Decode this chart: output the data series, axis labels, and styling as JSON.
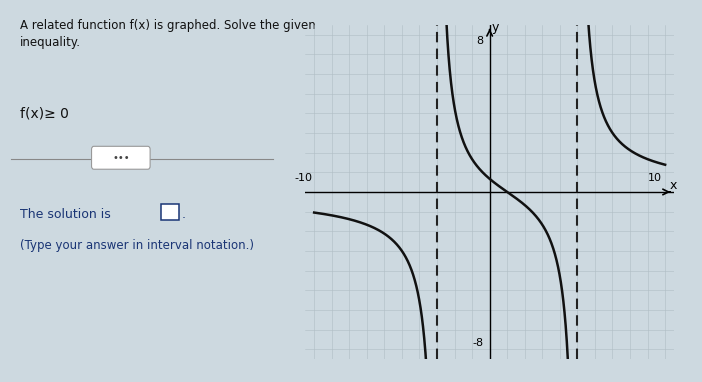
{
  "title_text": "A related function f(x) is graphed. Solve the given\ninequality.",
  "inequality_text": "f(x)≥ 0",
  "solution_label": "The solution is",
  "solution_note": "(Type your answer in interval notation.)",
  "left_bg": "#cdd9e0",
  "graph_outer_bg": "#d0dde5",
  "graph_inner_bg": "#dce8f0",
  "grid_color": "#b0bec5",
  "axis_color": "#000000",
  "curve_color": "#111111",
  "asymptote_color": "#222222",
  "va1": -3,
  "va2": 5,
  "xmin": -10,
  "xmax": 10,
  "ymin": -8,
  "ymax": 8,
  "scale": 10.0,
  "zero": 1
}
